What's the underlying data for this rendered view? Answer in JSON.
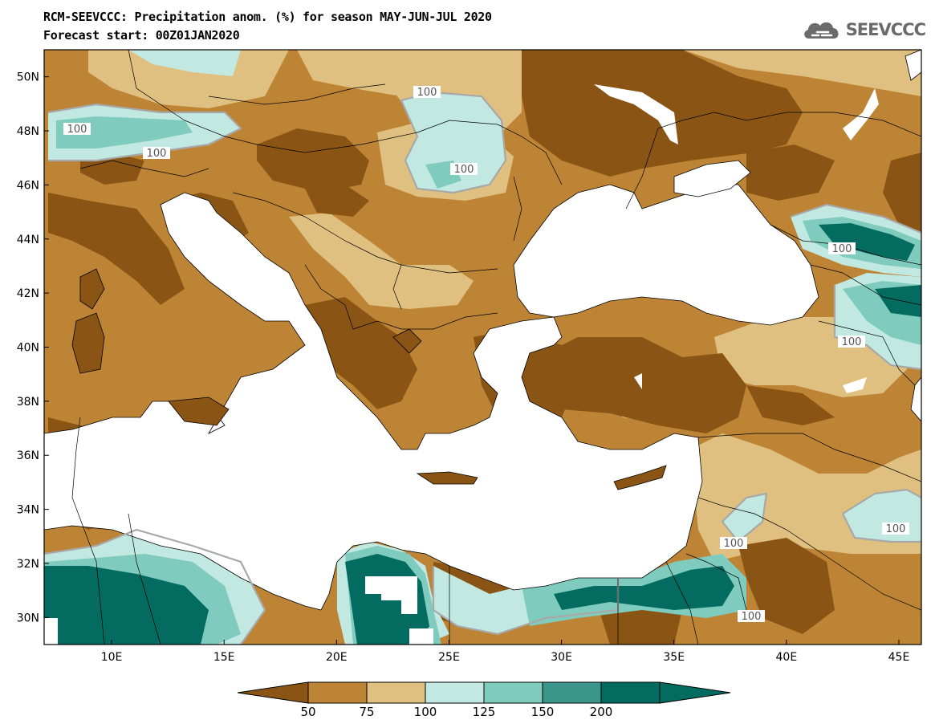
{
  "header": {
    "title_line1": "RCM-SEEVCCC: Precipitation anom. (%) for season MAY-JUN-JUL 2020",
    "title_line2": "Forecast start: 00Z01JAN2020",
    "logo_text": "SEEVCCC"
  },
  "axes": {
    "lat_ticks": [
      "50N",
      "48N",
      "46N",
      "44N",
      "42N",
      "40N",
      "38N",
      "36N",
      "34N",
      "32N",
      "30N"
    ],
    "lon_ticks": [
      "10E",
      "15E",
      "20E",
      "25E",
      "30E",
      "35E",
      "40E",
      "45E"
    ],
    "extent": {
      "lon_min": 7,
      "lon_max": 46,
      "lat_min": 29,
      "lat_max": 51
    }
  },
  "contour_labels": [
    "100",
    "100",
    "100",
    "100",
    "100",
    "100",
    "100",
    "100",
    "100"
  ],
  "colorbar": {
    "levels": [
      "50",
      "75",
      "100",
      "125",
      "150",
      "200"
    ],
    "colors": [
      "#8a5514",
      "#bd8436",
      "#dfc080",
      "#c2e8e2",
      "#7fcbbd",
      "#3a968a",
      "#036b60"
    ]
  }
}
